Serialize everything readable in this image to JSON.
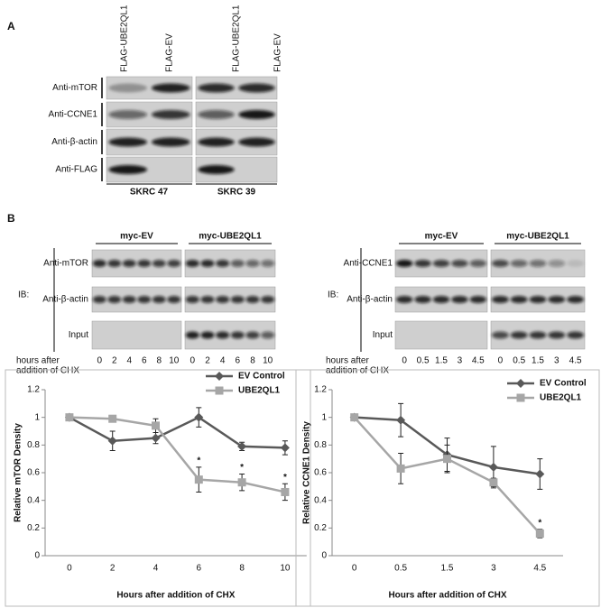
{
  "panel_a": {
    "label": "A",
    "columns": [
      "FLAG-UBE2QL1",
      "FLAG-EV",
      "FLAG-UBE2QL1",
      "FLAG-EV"
    ],
    "rows": [
      "Anti-mTOR",
      "Anti-CCNE1",
      "Anti-β-actin",
      "Anti-FLAG"
    ],
    "cell_lines": [
      "SKRC 47",
      "SKRC 39"
    ]
  },
  "panel_b": {
    "label": "B",
    "blots": [
      {
        "groups": [
          "myc-EV",
          "myc-UBE2QL1"
        ],
        "ib_label": "IB:",
        "rows": [
          "Anti-mTOR",
          "Anti-β-actin",
          "Input"
        ],
        "time_label": [
          "hours after",
          "addition of CHX"
        ],
        "times": [
          "0",
          "2",
          "4",
          "6",
          "8",
          "10"
        ]
      },
      {
        "groups": [
          "myc-EV",
          "myc-UBE2QL1"
        ],
        "ib_label": "IB:",
        "rows": [
          "Anti-CCNE1",
          "Anti-β-actin",
          "Input"
        ],
        "time_label": [
          "hours after",
          "addition of CHX"
        ],
        "times": [
          "0",
          "0.5",
          "1.5",
          "3",
          "4.5"
        ]
      }
    ]
  },
  "chart_data": [
    {
      "type": "line",
      "x_label": "Hours after addition of CHX",
      "y_label": "Relative mTOR Density",
      "categories": [
        "0",
        "2",
        "4",
        "6",
        "8",
        "10"
      ],
      "series": [
        {
          "name": "EV Control",
          "color": "#595959",
          "marker": "diamond",
          "values": [
            1,
            0.83,
            0.85,
            1.0,
            0.79,
            0.78
          ],
          "errors": [
            0,
            0.07,
            0.04,
            0.07,
            0.03,
            0.05
          ]
        },
        {
          "name": "UBE2QL1",
          "color": "#a6a6a6",
          "marker": "square",
          "values": [
            1,
            0.99,
            0.94,
            0.55,
            0.53,
            0.46
          ],
          "errors": [
            0,
            0.01,
            0.05,
            0.09,
            0.06,
            0.06
          ]
        }
      ],
      "ylim": [
        0,
        1.2
      ],
      "yticks": [
        0,
        0.2,
        0.4,
        0.6,
        0.8,
        1,
        1.2
      ],
      "annotations": [
        {
          "text": "*",
          "x": "6"
        },
        {
          "text": "*",
          "x": "8"
        },
        {
          "text": "*",
          "x": "10"
        }
      ],
      "legend": "top-right"
    },
    {
      "type": "line",
      "x_label": "Hours after addition of CHX",
      "y_label": "Relative CCNE1 Density",
      "categories": [
        "0",
        "0.5",
        "1.5",
        "3",
        "4.5"
      ],
      "series": [
        {
          "name": "EV Control",
          "color": "#595959",
          "marker": "diamond",
          "values": [
            1,
            0.98,
            0.73,
            0.64,
            0.59
          ],
          "errors": [
            0,
            0.12,
            0.12,
            0.15,
            0.11
          ]
        },
        {
          "name": "UBE2QL1",
          "color": "#a6a6a6",
          "marker": "square",
          "values": [
            1,
            0.63,
            0.7,
            0.53,
            0.16
          ],
          "errors": [
            0,
            0.11,
            0.1,
            0.03,
            0.03
          ]
        }
      ],
      "ylim": [
        0,
        1.2
      ],
      "yticks": [
        0,
        0.2,
        0.4,
        0.6,
        0.8,
        1,
        1.2
      ],
      "annotations": [
        {
          "text": "*",
          "x": "4.5"
        }
      ],
      "legend": "top-right"
    }
  ]
}
